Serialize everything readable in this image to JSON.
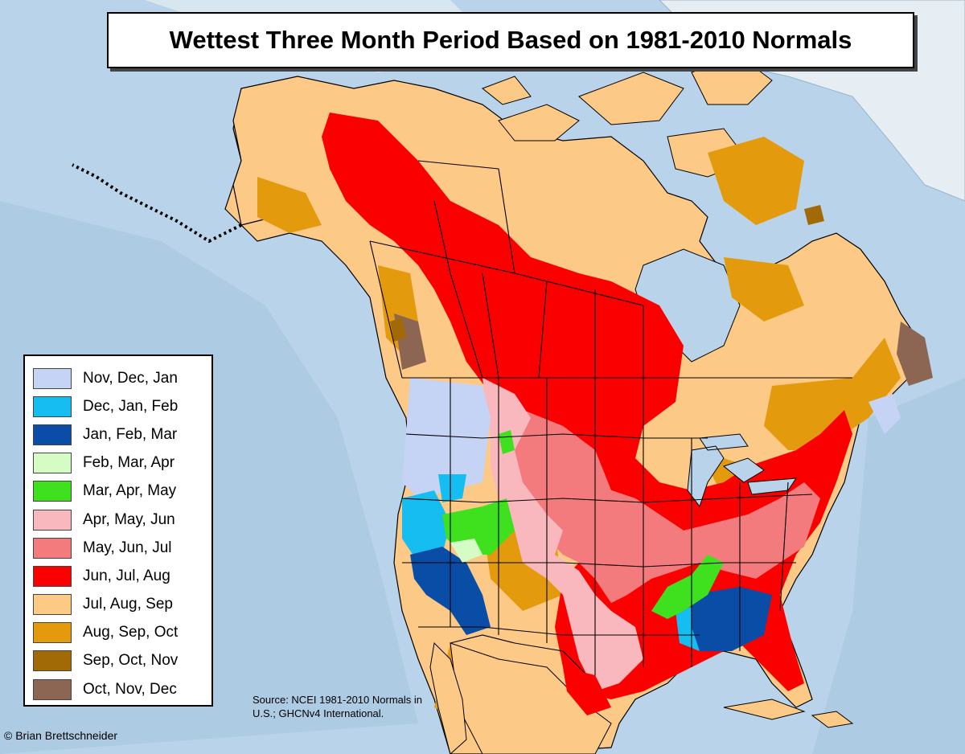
{
  "title": "Wettest Three Month Period Based on 1981-2010 Normals",
  "legend": [
    {
      "label": "Nov, Dec, Jan",
      "color": "#c5d3f5"
    },
    {
      "label": "Dec, Jan, Feb",
      "color": "#16bdf0"
    },
    {
      "label": "Jan, Feb, Mar",
      "color": "#0a4da6"
    },
    {
      "label": "Feb, Mar, Apr",
      "color": "#d4fcc4"
    },
    {
      "label": "Mar, Apr, May",
      "color": "#3fe01e"
    },
    {
      "label": "Apr, May, Jun",
      "color": "#f9b8bd"
    },
    {
      "label": "May, Jun, Jul",
      "color": "#f47b7d"
    },
    {
      "label": "Jun, Jul, Aug",
      "color": "#fb0000"
    },
    {
      "label": "Jul, Aug, Sep",
      "color": "#fcc987"
    },
    {
      "label": "Aug, Sep, Oct",
      "color": "#e39a0d"
    },
    {
      "label": "Sep, Oct, Nov",
      "color": "#a16a07"
    },
    {
      "label": "Oct, Nov, Dec",
      "color": "#8c6653"
    }
  ],
  "source_note": "Source: NCEI 1981-2010 Normals in U.S.; GHCNv4 International.",
  "credit": "© Brian Brettschneider",
  "colors": {
    "ocean": "#b9d4ea",
    "ice": "#e6eef3",
    "border": "#000000"
  }
}
